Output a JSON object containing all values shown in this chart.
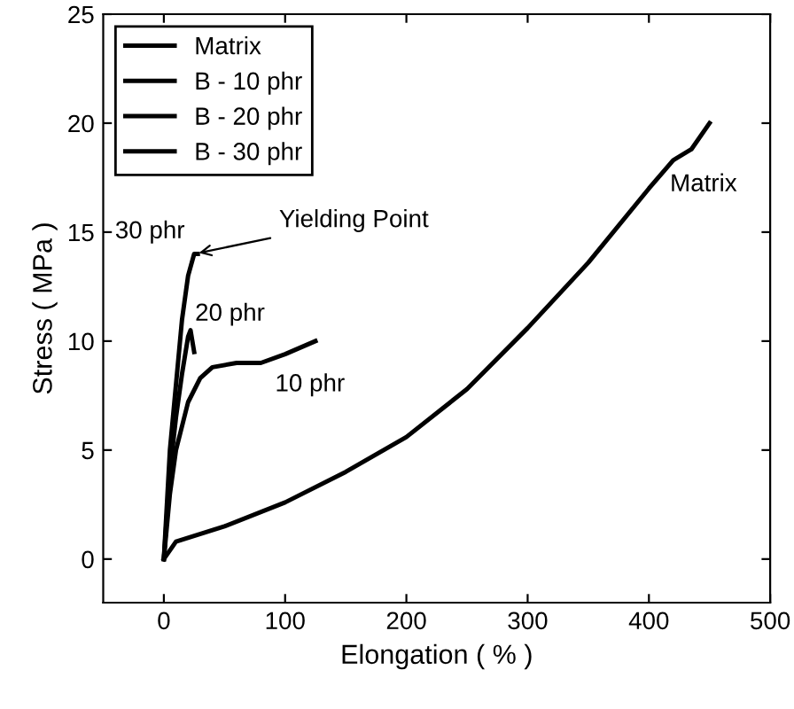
{
  "chart_data": {
    "type": "line",
    "xlabel": "Elongation ( % )",
    "ylabel": "Stress ( MPa )",
    "xlim": [
      -50,
      500
    ],
    "xticks": [
      0,
      100,
      200,
      300,
      400,
      500
    ],
    "ylim": [
      -2,
      25
    ],
    "yticks": [
      0,
      5,
      10,
      15,
      20,
      25
    ],
    "grid": false,
    "legend": "top left",
    "line_style": "solid",
    "marker": "none",
    "series": [
      {
        "name": "Matrix",
        "color": "#000000",
        "x": [
          0,
          10,
          50,
          100,
          150,
          200,
          250,
          300,
          350,
          400,
          420,
          435,
          450
        ],
        "values": [
          0,
          0.8,
          1.5,
          2.6,
          4,
          5.6,
          7.8,
          10.6,
          13.6,
          17,
          18.3,
          18.8,
          20
        ]
      },
      {
        "name": "B - 10 phr",
        "color": "#000000",
        "x": [
          0,
          5,
          10,
          20,
          30,
          40,
          60,
          80,
          100,
          125
        ],
        "values": [
          0,
          3,
          5,
          7.2,
          8.3,
          8.8,
          9,
          9,
          9.4,
          10
        ]
      },
      {
        "name": "B - 20 phr",
        "color": "#000000",
        "x": [
          0,
          5,
          10,
          15,
          20,
          22,
          25
        ],
        "values": [
          0,
          4,
          6.5,
          8.5,
          10.2,
          10.5,
          9.5
        ]
      },
      {
        "name": "B - 30 phr",
        "color": "#000000",
        "x": [
          0,
          5,
          10,
          15,
          20,
          25,
          28
        ],
        "values": [
          0,
          5,
          8,
          11,
          13,
          14,
          14
        ]
      }
    ],
    "annotations": [
      "30 phr",
      {
        "text": "Yielding Point",
        "x": 25,
        "y": 14
      },
      "20 phr",
      "10 phr",
      "Matrix"
    ]
  }
}
